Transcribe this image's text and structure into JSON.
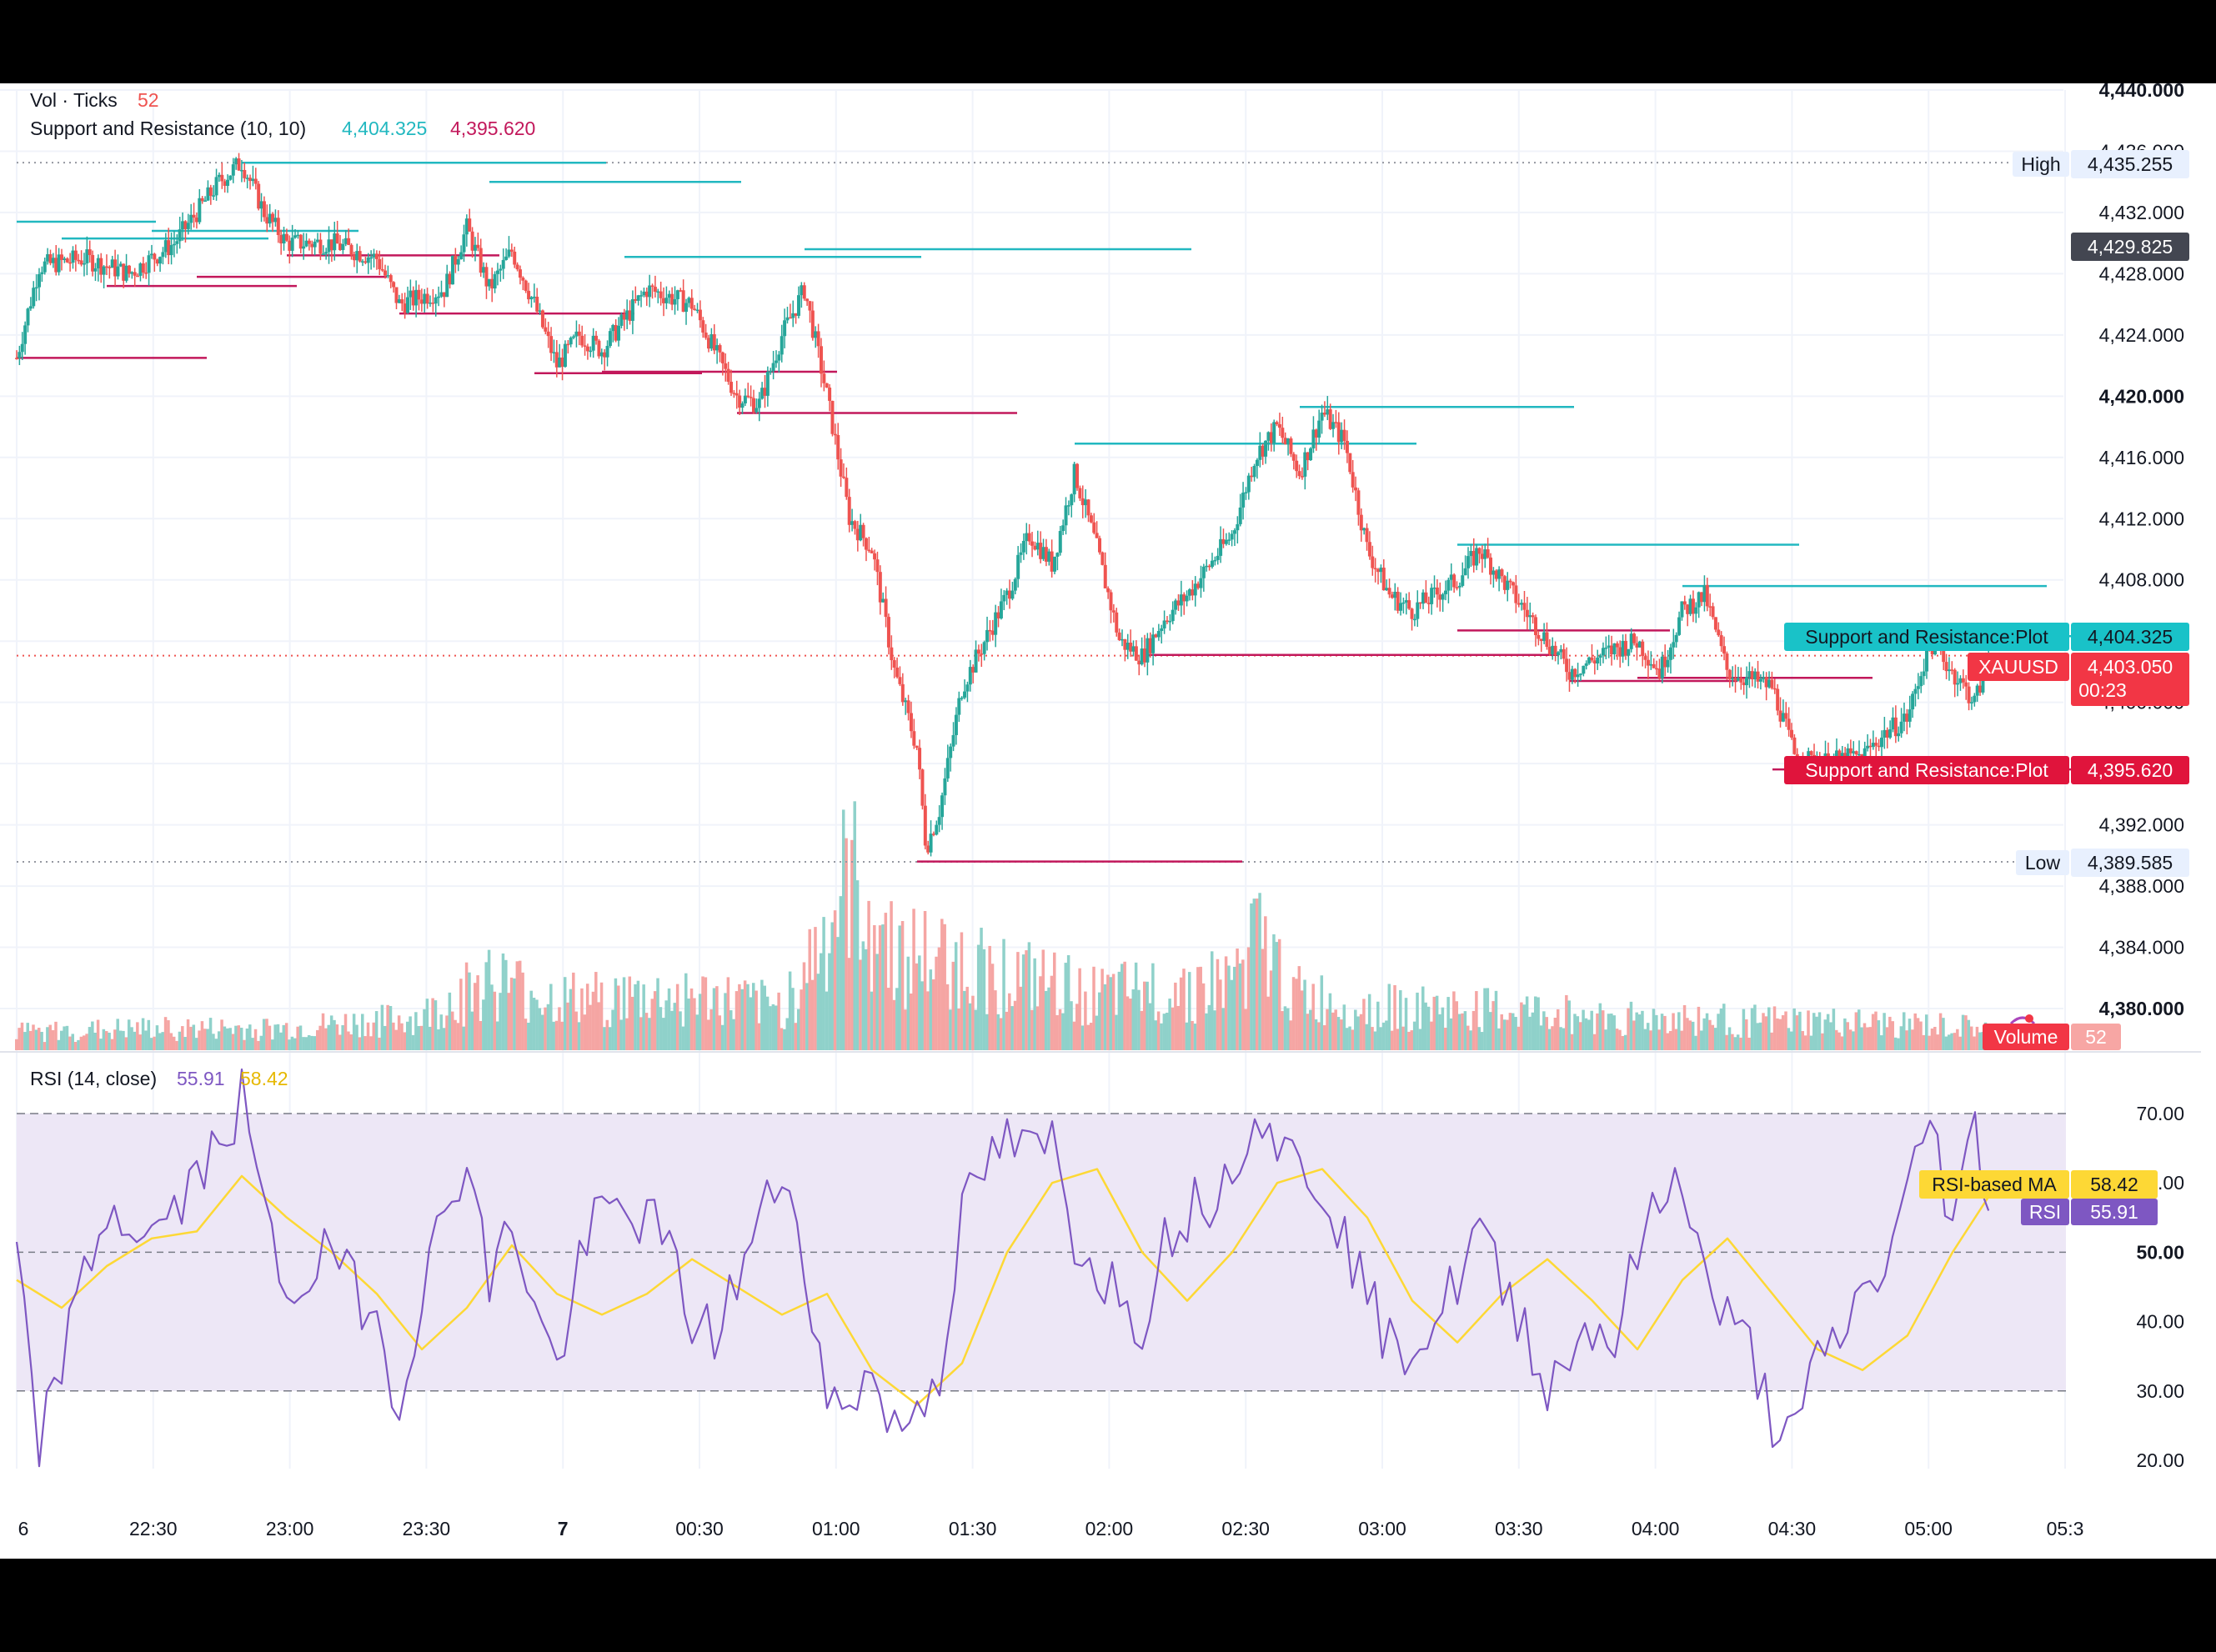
{
  "legend": {
    "vol_label": "Vol · Ticks",
    "vol_value": "52",
    "sr_label": "Support and Resistance (10, 10)",
    "sr_res": "4,404.325",
    "sr_sup": "4,395.620",
    "rsi_label": "RSI (14, close)",
    "rsi_value": "55.91",
    "rsi_ma_value": "58.42"
  },
  "price_axis": {
    "ticks": [
      "4,440.000",
      "4,436.000",
      "4,432.000",
      "4,428.000",
      "4,424.000",
      "4,420.000",
      "4,416.000",
      "4,412.000",
      "4,408.000",
      "4,404.000",
      "4,400.000",
      "4,396.000",
      "4,392.000",
      "4,388.000",
      "4,384.000",
      "4,380.000"
    ],
    "bold_ticks": [
      "4,440.000",
      "4,420.000",
      "4,380.000"
    ],
    "high_label": "High",
    "high_value": "4,435.255",
    "low_label": "Low",
    "low_value": "4,389.585",
    "crosshair_value": "4,429.825",
    "res_label": "Support and Resistance:Plot",
    "res_value": "4,404.325",
    "sup_label": "Support and Resistance:Plot",
    "sup_value": "4,395.620",
    "symbol": "XAUUSD",
    "last_value": "4,403.050",
    "countdown": "00:23",
    "volume_label": "Volume",
    "volume_value": "52"
  },
  "rsi_axis": {
    "ticks": [
      "70.00",
      "60.00",
      "50.00",
      "40.00",
      "30.00",
      "20.00"
    ],
    "ma_label": "RSI-based MA",
    "ma_value": "58.42",
    "rsi_label": "RSI",
    "rsi_value": "55.91"
  },
  "time_axis": [
    "6",
    "22:30",
    "23:00",
    "23:30",
    "7",
    "00:30",
    "01:00",
    "01:30",
    "02:00",
    "02:30",
    "03:00",
    "03:30",
    "04:00",
    "04:30",
    "05:00",
    "05:3"
  ],
  "colors": {
    "up": "#26a69a",
    "down": "#ef5350",
    "sr_res": "#22b8c0",
    "sr_sup": "#c2185b",
    "rsi": "#7e57c2",
    "rsi_ma": "#fdd835",
    "rsi_band": "#ede7f6",
    "label_res_bg": "#19c2c8",
    "label_sup_bg": "#e0143c",
    "label_last_bg": "#f23645",
    "crosshair_bg": "#434651",
    "grid": "#f0f3fa"
  },
  "chart_data": [
    {
      "type": "candlestick",
      "symbol": "XAUUSD",
      "x_range": [
        "22:00",
        "05:35"
      ],
      "ylim": [
        4378,
        4441
      ],
      "price_path": [
        [
          "22:00",
          4422.5
        ],
        [
          "22:05",
          4428.5
        ],
        [
          "22:15",
          4429
        ],
        [
          "22:25",
          4428
        ],
        [
          "22:35",
          4430
        ],
        [
          "22:45",
          4434
        ],
        [
          "22:50",
          4435.3
        ],
        [
          "22:55",
          4432
        ],
        [
          "23:00",
          4430
        ],
        [
          "23:10",
          4430
        ],
        [
          "23:20",
          4429
        ],
        [
          "23:25",
          4426
        ],
        [
          "23:35",
          4427
        ],
        [
          "23:40",
          4431
        ],
        [
          "23:45",
          4427
        ],
        [
          "23:50",
          4429.5
        ],
        [
          "23:55",
          4426
        ],
        [
          "00:00",
          4422
        ],
        [
          "00:05",
          4424
        ],
        [
          "00:10",
          4423
        ],
        [
          "00:20",
          4427
        ],
        [
          "00:30",
          4426
        ],
        [
          "00:35",
          4423
        ],
        [
          "00:40",
          4420
        ],
        [
          "00:45",
          4419.5
        ],
        [
          "00:50",
          4424
        ],
        [
          "00:55",
          4427
        ],
        [
          "01:00",
          4420
        ],
        [
          "01:05",
          4412
        ],
        [
          "01:10",
          4410
        ],
        [
          "01:15",
          4402
        ],
        [
          "01:20",
          4397
        ],
        [
          "01:22",
          4390.5
        ],
        [
          "01:25",
          4393
        ],
        [
          "01:30",
          4401
        ],
        [
          "01:35",
          4404
        ],
        [
          "01:40",
          4407
        ],
        [
          "01:45",
          4411
        ],
        [
          "01:50",
          4409
        ],
        [
          "01:55",
          4415
        ],
        [
          "02:00",
          4410
        ],
        [
          "02:05",
          4404
        ],
        [
          "02:10",
          4403
        ],
        [
          "02:15",
          4405.5
        ],
        [
          "02:20",
          4407
        ],
        [
          "02:25",
          4409
        ],
        [
          "02:30",
          4411
        ],
        [
          "02:35",
          4416
        ],
        [
          "02:40",
          4418
        ],
        [
          "02:45",
          4415
        ],
        [
          "02:50",
          4419
        ],
        [
          "02:55",
          4417
        ],
        [
          "03:00",
          4410
        ],
        [
          "03:05",
          4407
        ],
        [
          "03:10",
          4406
        ],
        [
          "03:20",
          4408
        ],
        [
          "03:25",
          4410
        ],
        [
          "03:35",
          4406
        ],
        [
          "03:45",
          4402
        ],
        [
          "03:55",
          4403.5
        ],
        [
          "04:00",
          4404
        ],
        [
          "04:05",
          4402
        ],
        [
          "04:10",
          4406
        ],
        [
          "04:15",
          4407
        ],
        [
          "04:20",
          4402
        ],
        [
          "04:30",
          4401
        ],
        [
          "04:35",
          4396.5
        ],
        [
          "04:40",
          4396
        ],
        [
          "04:50",
          4396.5
        ],
        [
          "04:55",
          4398
        ],
        [
          "05:00",
          4399
        ],
        [
          "05:05",
          4404
        ],
        [
          "05:10",
          4402
        ],
        [
          "05:15",
          4400
        ],
        [
          "05:18",
          4403.05
        ]
      ],
      "high": 4435.255,
      "low": 4389.585,
      "last": 4403.05
    },
    {
      "type": "step-line",
      "name": "Support and Resistance (10, 10)",
      "resistance_levels": [
        {
          "from": "22:00",
          "to": "22:05",
          "value": 4431.4
        },
        {
          "from": "22:10",
          "to": "22:30",
          "value": 4430.3
        },
        {
          "from": "22:30",
          "to": "22:50",
          "value": 4430.8
        },
        {
          "from": "22:50",
          "to": "23:45",
          "value": 4435.25
        },
        {
          "from": "23:45",
          "to": "00:15",
          "value": 4434
        },
        {
          "from": "00:15",
          "to": "00:55",
          "value": 4429.1
        },
        {
          "from": "00:55",
          "to": "01:55",
          "value": 4429.6
        },
        {
          "from": "01:55",
          "to": "02:45",
          "value": 4416.9
        },
        {
          "from": "02:45",
          "to": "03:20",
          "value": 4419.3
        },
        {
          "from": "03:20",
          "to": "04:10",
          "value": 4410.3
        },
        {
          "from": "04:10",
          "to": "05:05",
          "value": 4407.6
        },
        {
          "from": "05:05",
          "to": "05:18",
          "value": 4404.325
        }
      ],
      "support_levels": [
        {
          "from": "22:00",
          "to": "22:20",
          "value": 4422.5
        },
        {
          "from": "22:20",
          "to": "22:40",
          "value": 4427.2
        },
        {
          "from": "22:40",
          "to": "23:00",
          "value": 4427.8
        },
        {
          "from": "23:00",
          "to": "23:25",
          "value": 4429.2
        },
        {
          "from": "23:25",
          "to": "23:55",
          "value": 4425.4
        },
        {
          "from": "23:55",
          "to": "00:10",
          "value": 4421.5
        },
        {
          "from": "00:10",
          "to": "00:40",
          "value": 4421.6
        },
        {
          "from": "00:40",
          "to": "01:20",
          "value": 4418.9
        },
        {
          "from": "01:20",
          "to": "02:10",
          "value": 4389.6
        },
        {
          "from": "02:10",
          "to": "03:20",
          "value": 4403.1
        },
        {
          "from": "03:20",
          "to": "03:45",
          "value": 4404.7
        },
        {
          "from": "03:45",
          "to": "04:00",
          "value": 4401.4
        },
        {
          "from": "04:00",
          "to": "04:30",
          "value": 4401.6
        },
        {
          "from": "04:30",
          "to": "05:15",
          "value": 4395.62
        }
      ]
    },
    {
      "type": "bar",
      "name": "Vol · Ticks",
      "last": 52,
      "volume_profile": [
        [
          "22:00",
          10
        ],
        [
          "22:30",
          12
        ],
        [
          "23:00",
          12
        ],
        [
          "23:30",
          18
        ],
        [
          "23:45",
          40
        ],
        [
          "00:00",
          28
        ],
        [
          "00:30",
          30
        ],
        [
          "00:50",
          24
        ],
        [
          "01:00",
          65
        ],
        [
          "01:05",
          95
        ],
        [
          "01:15",
          55
        ],
        [
          "01:30",
          48
        ],
        [
          "02:00",
          30
        ],
        [
          "02:30",
          38
        ],
        [
          "02:35",
          62
        ],
        [
          "02:45",
          30
        ],
        [
          "03:00",
          24
        ],
        [
          "03:30",
          22
        ],
        [
          "04:00",
          18
        ],
        [
          "04:30",
          16
        ],
        [
          "05:00",
          14
        ],
        [
          "05:18",
          12
        ]
      ]
    },
    {
      "type": "line",
      "name": "RSI (14, close)",
      "ylim": [
        17,
        73
      ],
      "band": [
        30,
        70
      ],
      "midline": 50,
      "rsi_path": [
        [
          "22:00",
          48
        ],
        [
          "22:05",
          22
        ],
        [
          "22:10",
          35
        ],
        [
          "22:20",
          56
        ],
        [
          "22:30",
          52
        ],
        [
          "22:40",
          60
        ],
        [
          "22:50",
          72
        ],
        [
          "22:55",
          55
        ],
        [
          "23:00",
          44
        ],
        [
          "23:10",
          50
        ],
        [
          "23:20",
          40
        ],
        [
          "23:25",
          28
        ],
        [
          "23:30",
          45
        ],
        [
          "23:40",
          65
        ],
        [
          "23:45",
          45
        ],
        [
          "23:50",
          55
        ],
        [
          "23:55",
          42
        ],
        [
          "00:00",
          33
        ],
        [
          "00:05",
          48
        ],
        [
          "00:10",
          56
        ],
        [
          "00:20",
          55
        ],
        [
          "00:25",
          50
        ],
        [
          "00:30",
          40
        ],
        [
          "00:35",
          38
        ],
        [
          "00:45",
          54
        ],
        [
          "00:50",
          62
        ],
        [
          "00:55",
          50
        ],
        [
          "01:00",
          27
        ],
        [
          "01:05",
          30
        ],
        [
          "01:10",
          32
        ],
        [
          "01:15",
          24
        ],
        [
          "01:20",
          28
        ],
        [
          "01:25",
          33
        ],
        [
          "01:30",
          55
        ],
        [
          "01:35",
          62
        ],
        [
          "01:40",
          66
        ],
        [
          "01:45",
          64
        ],
        [
          "01:50",
          66
        ],
        [
          "01:55",
          52
        ],
        [
          "02:00",
          48
        ],
        [
          "02:05",
          44
        ],
        [
          "02:10",
          40
        ],
        [
          "02:15",
          52
        ],
        [
          "02:20",
          56
        ],
        [
          "02:25",
          58
        ],
        [
          "02:30",
          62
        ],
        [
          "02:35",
          72
        ],
        [
          "02:40",
          66
        ],
        [
          "02:45",
          62
        ],
        [
          "02:50",
          60
        ],
        [
          "02:55",
          52
        ],
        [
          "03:00",
          44
        ],
        [
          "03:05",
          36
        ],
        [
          "03:10",
          37
        ],
        [
          "03:15",
          40
        ],
        [
          "03:20",
          46
        ],
        [
          "03:25",
          54
        ],
        [
          "03:30",
          44
        ],
        [
          "03:35",
          40
        ],
        [
          "03:40",
          30
        ],
        [
          "03:45",
          36
        ],
        [
          "03:50",
          40
        ],
        [
          "03:55",
          37
        ],
        [
          "04:00",
          50
        ],
        [
          "04:05",
          57
        ],
        [
          "04:10",
          62
        ],
        [
          "04:15",
          46
        ],
        [
          "04:20",
          40
        ],
        [
          "04:25",
          36
        ],
        [
          "04:30",
          26
        ],
        [
          "04:35",
          23
        ],
        [
          "04:40",
          34
        ],
        [
          "04:45",
          38
        ],
        [
          "04:50",
          44
        ],
        [
          "04:55",
          48
        ],
        [
          "05:00",
          58
        ],
        [
          "05:05",
          70
        ],
        [
          "05:10",
          54
        ],
        [
          "05:15",
          68
        ],
        [
          "05:18",
          56
        ]
      ],
      "last": 55.91
    },
    {
      "type": "line",
      "name": "RSI-based MA",
      "ma_path": [
        [
          "22:00",
          46
        ],
        [
          "22:10",
          42
        ],
        [
          "22:20",
          48
        ],
        [
          "22:30",
          52
        ],
        [
          "22:40",
          53
        ],
        [
          "22:50",
          61
        ],
        [
          "23:00",
          55
        ],
        [
          "23:10",
          50
        ],
        [
          "23:20",
          44
        ],
        [
          "23:30",
          36
        ],
        [
          "23:40",
          42
        ],
        [
          "23:50",
          51
        ],
        [
          "00:00",
          44
        ],
        [
          "00:10",
          41
        ],
        [
          "00:20",
          44
        ],
        [
          "00:30",
          49
        ],
        [
          "00:40",
          45
        ],
        [
          "00:50",
          41
        ],
        [
          "01:00",
          44
        ],
        [
          "01:10",
          33
        ],
        [
          "01:20",
          28
        ],
        [
          "01:30",
          34
        ],
        [
          "01:40",
          50
        ],
        [
          "01:50",
          60
        ],
        [
          "02:00",
          62
        ],
        [
          "02:10",
          50
        ],
        [
          "02:20",
          43
        ],
        [
          "02:30",
          50
        ],
        [
          "02:40",
          60
        ],
        [
          "02:50",
          62
        ],
        [
          "03:00",
          55
        ],
        [
          "03:10",
          43
        ],
        [
          "03:20",
          37
        ],
        [
          "03:30",
          44
        ],
        [
          "03:40",
          49
        ],
        [
          "03:50",
          43
        ],
        [
          "04:00",
          36
        ],
        [
          "04:10",
          46
        ],
        [
          "04:20",
          52
        ],
        [
          "04:30",
          44
        ],
        [
          "04:40",
          36
        ],
        [
          "04:50",
          33
        ],
        [
          "05:00",
          38
        ],
        [
          "05:10",
          50
        ],
        [
          "05:18",
          58
        ]
      ],
      "last": 58.42
    }
  ]
}
